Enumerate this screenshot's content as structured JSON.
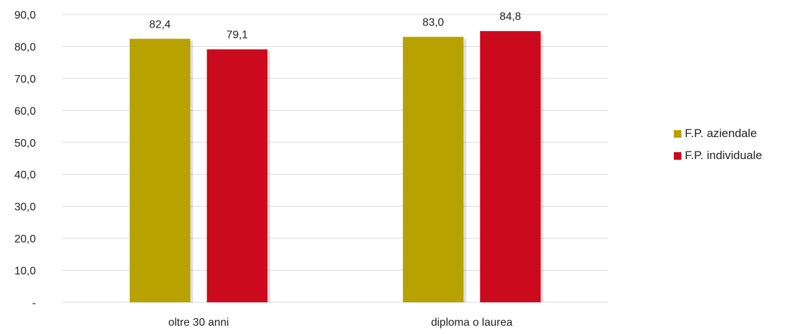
{
  "chart_data": {
    "type": "bar",
    "title": "",
    "xlabel": "",
    "ylabel": "",
    "ylim": [
      0,
      90
    ],
    "y_tick_labels": [
      "-",
      "10,0",
      "20,0",
      "30,0",
      "40,0",
      "50,0",
      "60,0",
      "70,0",
      "80,0",
      "90,0"
    ],
    "categories": [
      "oltre 30 anni",
      "diploma o laurea"
    ],
    "series": [
      {
        "name": "F.P. aziendale",
        "values": [
          82.4,
          83.0
        ],
        "value_labels": [
          "82,4",
          "83,0"
        ],
        "color": "#b8a200"
      },
      {
        "name": "F.P. individuale",
        "values": [
          79.1,
          84.8
        ],
        "value_labels": [
          "79,1",
          "84,8"
        ],
        "color": "#cc0a1e"
      }
    ],
    "grid": true,
    "legend_position": "right"
  }
}
